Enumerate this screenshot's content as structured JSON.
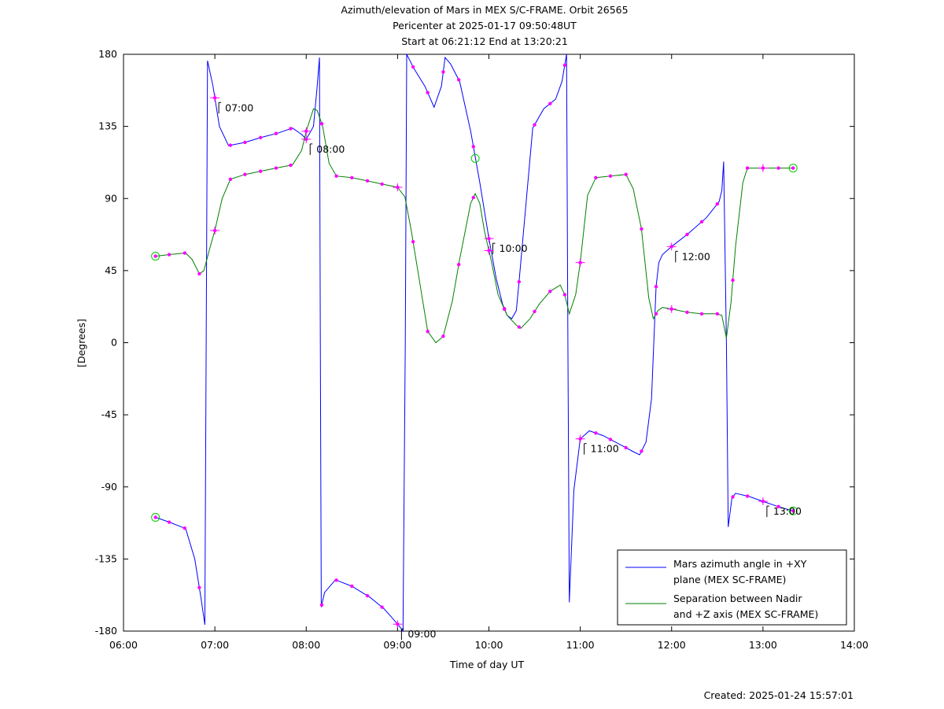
{
  "chart_data": {
    "type": "line",
    "title_lines": [
      "Azimuth/elevation of Mars in MEX S/C-FRAME.  Orbit 26565",
      "Pericenter at 2025-01-17 09:50:48UT",
      "Start at 06:21:12 End at 13:20:21"
    ],
    "xlabel": "Time of day UT",
    "ylabel": "[Degrees]",
    "xlim": [
      6,
      14
    ],
    "ylim": [
      -180,
      180
    ],
    "x_ticks": [
      6,
      7,
      8,
      9,
      10,
      11,
      12,
      13,
      14
    ],
    "x_tick_labels": [
      "06:00",
      "07:00",
      "08:00",
      "09:00",
      "10:00",
      "11:00",
      "12:00",
      "13:00",
      "14:00"
    ],
    "y_ticks": [
      180,
      135,
      90,
      45,
      0,
      -45,
      -90,
      -135,
      -180
    ],
    "y_tick_labels": [
      "180",
      "135",
      "90",
      "45",
      "0",
      "-45",
      "-90",
      "-135",
      "-180"
    ],
    "grid": false,
    "legend_position": "bottom-right",
    "series": [
      {
        "name_lines": [
          "Mars azimuth angle in +XY",
          "plane (MEX SC-FRAME)"
        ],
        "color": "#0000ff",
        "points": [
          [
            6.35,
            -109
          ],
          [
            6.5,
            -112
          ],
          [
            6.68,
            -116
          ],
          [
            6.78,
            -135
          ],
          [
            6.85,
            -160
          ],
          [
            6.89,
            -176
          ],
          [
            6.905,
            0
          ],
          [
            6.92,
            176
          ],
          [
            6.98,
            160
          ],
          [
            7.05,
            135
          ],
          [
            7.15,
            123
          ],
          [
            7.33,
            125
          ],
          [
            7.5,
            128
          ],
          [
            7.7,
            131
          ],
          [
            7.85,
            134
          ],
          [
            7.95,
            130
          ],
          [
            8.0,
            127
          ],
          [
            8.08,
            135
          ],
          [
            8.12,
            160
          ],
          [
            8.145,
            178
          ],
          [
            8.155,
            0
          ],
          [
            8.165,
            -165
          ],
          [
            8.2,
            -156
          ],
          [
            8.32,
            -148
          ],
          [
            8.5,
            -152
          ],
          [
            8.7,
            -159
          ],
          [
            8.85,
            -166
          ],
          [
            8.93,
            -171
          ],
          [
            9.02,
            -177
          ],
          [
            9.06,
            -180
          ],
          [
            9.085,
            0
          ],
          [
            9.1,
            180
          ],
          [
            9.18,
            171
          ],
          [
            9.3,
            160
          ],
          [
            9.4,
            147
          ],
          [
            9.48,
            160
          ],
          [
            9.52,
            178
          ],
          [
            9.58,
            174
          ],
          [
            9.68,
            163
          ],
          [
            9.8,
            132
          ],
          [
            9.9,
            100
          ],
          [
            10.0,
            65
          ],
          [
            10.08,
            40
          ],
          [
            10.15,
            24
          ],
          [
            10.2,
            17
          ],
          [
            10.25,
            15
          ],
          [
            10.3,
            20
          ],
          [
            10.33,
            38
          ],
          [
            10.38,
            70
          ],
          [
            10.48,
            134
          ],
          [
            10.6,
            146
          ],
          [
            10.73,
            152
          ],
          [
            10.8,
            163
          ],
          [
            10.85,
            180
          ],
          [
            10.865,
            0
          ],
          [
            10.88,
            -162
          ],
          [
            10.93,
            -92
          ],
          [
            11.0,
            -60
          ],
          [
            11.1,
            -55
          ],
          [
            11.25,
            -58
          ],
          [
            11.45,
            -64
          ],
          [
            11.58,
            -68
          ],
          [
            11.65,
            -70
          ],
          [
            11.72,
            -62
          ],
          [
            11.78,
            -35
          ],
          [
            11.83,
            35
          ],
          [
            11.86,
            50
          ],
          [
            11.9,
            55
          ],
          [
            12.0,
            60
          ],
          [
            12.18,
            68
          ],
          [
            12.38,
            78
          ],
          [
            12.52,
            88
          ],
          [
            12.55,
            95
          ],
          [
            12.57,
            113
          ],
          [
            12.6,
            0
          ],
          [
            12.62,
            -115
          ],
          [
            12.66,
            -97
          ],
          [
            12.7,
            -94
          ],
          [
            12.85,
            -96
          ],
          [
            13.0,
            -99
          ],
          [
            13.15,
            -102
          ],
          [
            13.33,
            -105
          ]
        ],
        "marker_x": [
          6.35,
          6.5,
          6.67,
          6.83,
          7.0,
          7.17,
          7.33,
          7.5,
          7.67,
          7.83,
          8.0,
          8.17,
          8.33,
          8.5,
          8.67,
          8.83,
          9.0,
          9.17,
          9.33,
          9.5,
          9.67,
          9.83,
          10.0,
          10.17,
          10.33,
          10.5,
          10.67,
          10.83,
          11.0,
          11.17,
          11.33,
          11.5,
          11.67,
          11.83,
          12.0,
          12.17,
          12.33,
          12.5,
          12.67,
          12.83,
          13.0,
          13.17,
          13.33
        ],
        "labelled_times": [
          {
            "x": 7.0,
            "text": "07:00"
          },
          {
            "x": 8.0,
            "text": "08:00"
          },
          {
            "x": 9.0,
            "text": "09:00"
          },
          {
            "x": 10.0,
            "text": "10:00"
          },
          {
            "x": 11.0,
            "text": "11:00"
          },
          {
            "x": 12.0,
            "text": "12:00"
          },
          {
            "x": 13.0,
            "text": "13:00"
          }
        ],
        "circle_x": [
          6.35,
          13.33
        ]
      },
      {
        "name_lines": [
          "Separation between Nadir",
          "and +Z axis (MEX SC-FRAME)"
        ],
        "color": "#008000",
        "points": [
          [
            6.35,
            54
          ],
          [
            6.5,
            55
          ],
          [
            6.68,
            56
          ],
          [
            6.75,
            52
          ],
          [
            6.83,
            43
          ],
          [
            6.88,
            45
          ],
          [
            6.95,
            60
          ],
          [
            7.0,
            70
          ],
          [
            7.08,
            90
          ],
          [
            7.17,
            102
          ],
          [
            7.33,
            105
          ],
          [
            7.5,
            107
          ],
          [
            7.67,
            109
          ],
          [
            7.85,
            111
          ],
          [
            7.95,
            120
          ],
          [
            8.0,
            132
          ],
          [
            8.08,
            146
          ],
          [
            8.12,
            145
          ],
          [
            8.18,
            135
          ],
          [
            8.25,
            112
          ],
          [
            8.33,
            104
          ],
          [
            8.5,
            103
          ],
          [
            8.67,
            101
          ],
          [
            8.83,
            99
          ],
          [
            9.0,
            97
          ],
          [
            9.08,
            91
          ],
          [
            9.15,
            70
          ],
          [
            9.25,
            35
          ],
          [
            9.33,
            7
          ],
          [
            9.42,
            0
          ],
          [
            9.5,
            4
          ],
          [
            9.6,
            26
          ],
          [
            9.68,
            52
          ],
          [
            9.8,
            87
          ],
          [
            9.85,
            93
          ],
          [
            9.9,
            87
          ],
          [
            9.95,
            70
          ],
          [
            10.03,
            50
          ],
          [
            10.1,
            30
          ],
          [
            10.2,
            17
          ],
          [
            10.3,
            11
          ],
          [
            10.35,
            9
          ],
          [
            10.45,
            15
          ],
          [
            10.55,
            24
          ],
          [
            10.67,
            32
          ],
          [
            10.78,
            36
          ],
          [
            10.83,
            30
          ],
          [
            10.88,
            18
          ],
          [
            10.95,
            30
          ],
          [
            11.0,
            50
          ],
          [
            11.08,
            92
          ],
          [
            11.17,
            103
          ],
          [
            11.33,
            104
          ],
          [
            11.5,
            105
          ],
          [
            11.58,
            96
          ],
          [
            11.67,
            71
          ],
          [
            11.75,
            28
          ],
          [
            11.8,
            15
          ],
          [
            11.85,
            20
          ],
          [
            11.9,
            22
          ],
          [
            12.0,
            21
          ],
          [
            12.17,
            19
          ],
          [
            12.33,
            18
          ],
          [
            12.5,
            18
          ],
          [
            12.55,
            17
          ],
          [
            12.6,
            3
          ],
          [
            12.65,
            25
          ],
          [
            12.7,
            60
          ],
          [
            12.78,
            100
          ],
          [
            12.83,
            109
          ],
          [
            13.0,
            109
          ],
          [
            13.17,
            109
          ],
          [
            13.33,
            109
          ]
        ],
        "marker_x": [
          6.35,
          6.5,
          6.67,
          6.83,
          7.0,
          7.17,
          7.33,
          7.5,
          7.67,
          7.83,
          8.0,
          8.17,
          8.33,
          8.5,
          8.67,
          8.83,
          9.0,
          9.17,
          9.33,
          9.5,
          9.67,
          9.83,
          10.0,
          10.17,
          10.33,
          10.5,
          10.67,
          10.83,
          11.0,
          11.17,
          11.33,
          11.5,
          11.67,
          11.83,
          12.0,
          12.17,
          12.33,
          12.5,
          12.67,
          12.83,
          13.0,
          13.17,
          13.33
        ],
        "cross_x": [
          7.0,
          8.0,
          9.0,
          10.0,
          11.0,
          12.0,
          13.0
        ],
        "circle_x": [
          6.35,
          13.33
        ],
        "extra_circles": [
          [
            9.85,
            115
          ]
        ]
      }
    ],
    "footer": "Created: 2025-01-24 15:57:01"
  }
}
